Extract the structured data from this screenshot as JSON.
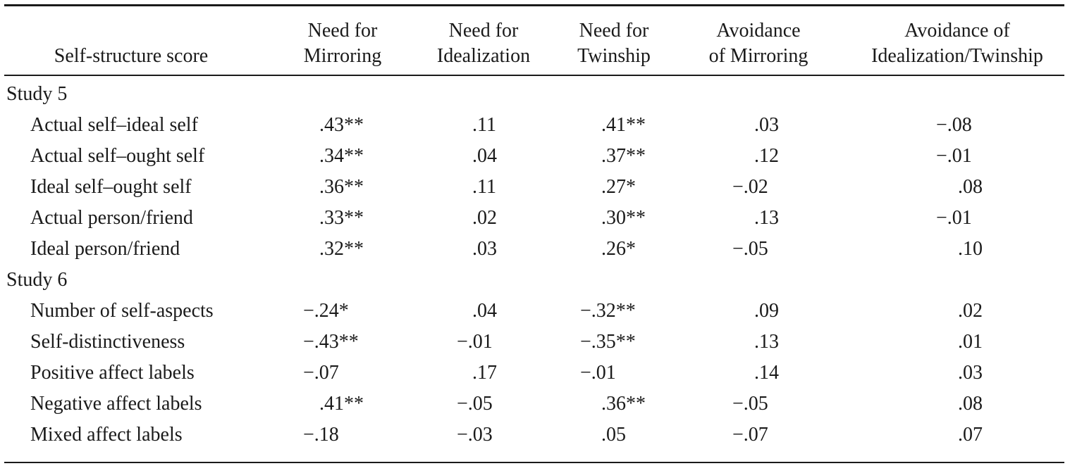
{
  "columns": [
    {
      "key": "stub",
      "label_lines": [
        "Self-structure score"
      ]
    },
    {
      "key": "mirroring",
      "label_lines": [
        "Need for",
        "Mirroring"
      ]
    },
    {
      "key": "idealization",
      "label_lines": [
        "Need for",
        "Idealization"
      ]
    },
    {
      "key": "twinship",
      "label_lines": [
        "Need for",
        "Twinship"
      ]
    },
    {
      "key": "avoid_mirroring",
      "label_lines": [
        "Avoidance",
        "of Mirroring"
      ]
    },
    {
      "key": "avoid_ideal_twin",
      "label_lines": [
        "Avoidance of",
        "Idealization/Twinship"
      ]
    }
  ],
  "sections": [
    {
      "label": "Study 5",
      "rows": [
        {
          "label": "Actual self–ideal self",
          "values": [
            ".43**",
            ".11",
            ".41**",
            ".03",
            "−.08"
          ]
        },
        {
          "label": "Actual self–ought self",
          "values": [
            ".34**",
            ".04",
            ".37**",
            ".12",
            "−.01"
          ]
        },
        {
          "label": "Ideal self–ought self",
          "values": [
            ".36**",
            ".11",
            ".27*",
            "−.02",
            ".08"
          ]
        },
        {
          "label": "Actual person/friend",
          "values": [
            ".33**",
            ".02",
            ".30**",
            ".13",
            "−.01"
          ]
        },
        {
          "label": "Ideal person/friend",
          "values": [
            ".32**",
            ".03",
            ".26*",
            "−.05",
            ".10"
          ]
        }
      ]
    },
    {
      "label": "Study 6",
      "rows": [
        {
          "label": "Number of self-aspects",
          "values": [
            "−.24*",
            ".04",
            "−.32**",
            ".09",
            ".02"
          ]
        },
        {
          "label": "Self-distinctiveness",
          "values": [
            "−.43**",
            "−.01",
            "−.35**",
            ".13",
            ".01"
          ]
        },
        {
          "label": "Positive affect labels",
          "values": [
            "−.07",
            ".17",
            "−.01",
            ".14",
            ".03"
          ]
        },
        {
          "label": "Negative affect labels",
          "values": [
            ".41**",
            "−.05",
            ".36**",
            "−.05",
            ".08"
          ]
        },
        {
          "label": "Mixed affect labels",
          "values": [
            "−.18",
            "−.03",
            ".05",
            "−.07",
            ".07"
          ]
        }
      ]
    }
  ]
}
